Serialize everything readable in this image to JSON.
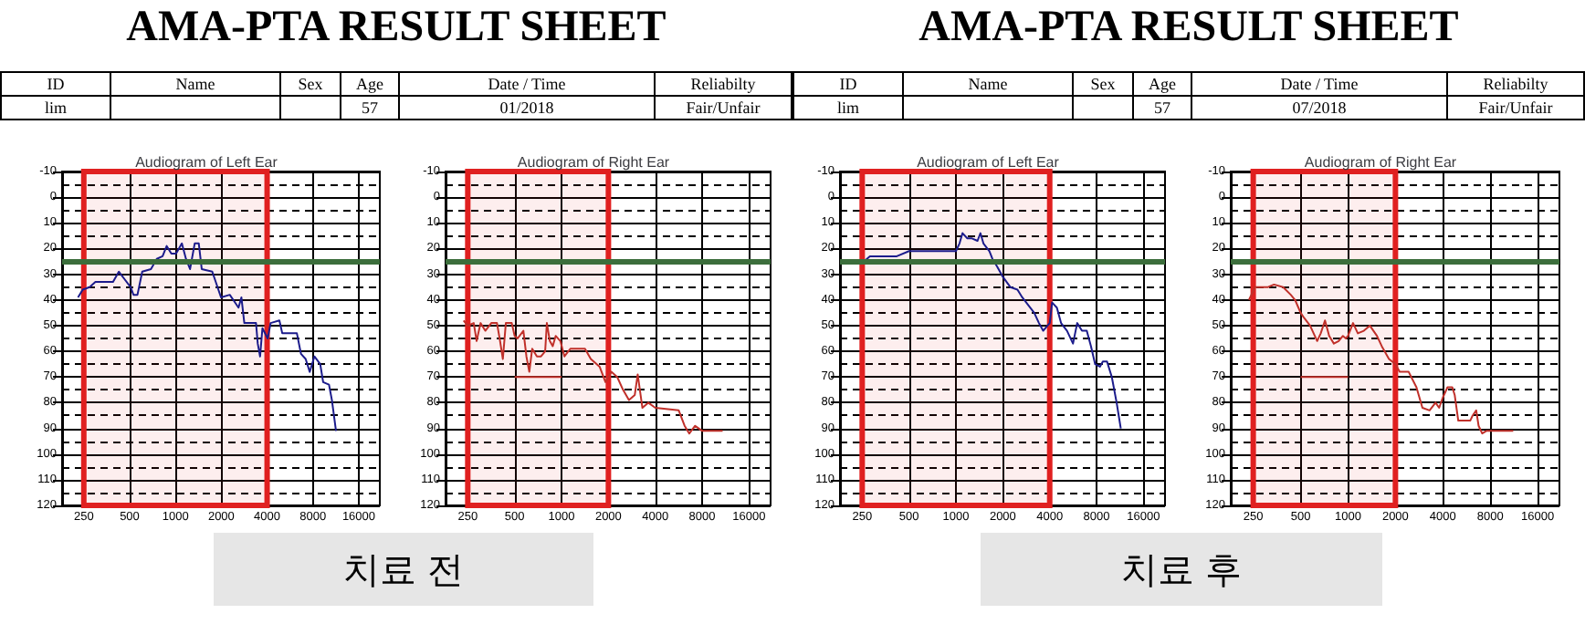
{
  "chart_data": [
    {
      "type": "other",
      "title": "AMA-PTA RESULT SHEET",
      "categories": [
        "ID",
        "Name",
        "Sex",
        "Age",
        "Date / Time",
        "Reliabilty"
      ],
      "cell_labels": [
        [
          "lim",
          null,
          null,
          "57",
          "01/2018",
          "Fair/Unfair"
        ]
      ]
    },
    {
      "type": "other",
      "title": "AMA-PTA RESULT SHEET",
      "categories": [
        "ID",
        "Name",
        "Sex",
        "Age",
        "Date / Time",
        "Reliabilty"
      ],
      "cell_labels": [
        [
          "lim",
          null,
          null,
          "57",
          "07/2018",
          "Fair/Unfair"
        ]
      ]
    },
    {
      "type": "line",
      "title": "Audiogram of Left Ear",
      "log": "x",
      "grid": true,
      "xlim": [
        180,
        22000
      ],
      "xticks": [
        250,
        500,
        1000,
        2000,
        4000,
        8000,
        16000
      ],
      "ylim": [
        120,
        -10
      ],
      "yticks": [
        -10,
        0,
        10,
        20,
        30,
        40,
        50,
        60,
        70,
        80,
        90,
        100,
        110,
        120
      ],
      "series": [
        {
          "color": "#1c1c8c",
          "x": [
            229,
            246,
            273,
            298,
            389,
            425,
            464,
            507,
            530,
            563,
            605,
            690,
            754,
            823,
            876,
            940,
            1009,
            1102,
            1172,
            1247,
            1338,
            1423,
            1488,
            1745,
            1992,
            2274,
            2595,
            2711,
            2834,
            3382,
            3472,
            3597,
            3727,
            4037,
            4217,
            4816,
            5032,
            6276,
            6676,
            7165,
            7622,
            8181,
            8933,
            9337,
            10200,
            10660,
            11340
          ],
          "values": [
            39,
            36,
            35,
            33,
            33,
            29,
            32,
            35,
            38,
            38,
            29,
            28,
            24,
            23,
            19,
            22,
            22,
            18,
            24,
            28,
            18,
            18,
            28,
            29,
            39,
            38,
            43,
            39,
            49,
            49,
            57,
            62,
            51,
            55,
            49,
            48,
            53,
            53,
            61,
            63,
            68,
            62,
            65,
            72,
            73,
            79,
            91
          ]
        }
      ],
      "ref_lines": [
        {
          "axis": "y",
          "value": 25,
          "color": "#3c6e3c"
        }
      ],
      "bands": [
        {
          "axis": "x",
          "from": 250,
          "to": 4000,
          "color": "#e02020"
        }
      ]
    },
    {
      "type": "line",
      "title": "Audiogram of Right Ear",
      "log": "x",
      "grid": true,
      "xlim": [
        180,
        22000
      ],
      "xticks": [
        250,
        500,
        1000,
        2000,
        4000,
        8000,
        16000
      ],
      "ylim": [
        120,
        -10
      ],
      "yticks": [
        -10,
        0,
        10,
        20,
        30,
        40,
        50,
        60,
        70,
        80,
        90,
        100,
        110,
        120
      ],
      "series": [
        {
          "color": "#c0302a",
          "x": [
            235,
            250,
            273,
            285,
            302,
            324,
            354,
            385,
            403,
            420,
            439,
            479,
            500,
            522,
            569,
            595,
            621,
            648,
            695,
            738,
            785,
            805,
            841,
            878,
            917,
            983,
            1044,
            1139,
            1414,
            1542,
            1756,
            1915,
            2089,
            2278,
            2484,
            2709,
            2954,
            3084,
            3306,
            3605,
            4000,
            5657,
            6169,
            6612,
            7211,
            8000,
            10830
          ],
          "values": [
            48,
            50,
            49,
            56,
            49,
            52,
            49,
            49,
            56,
            63,
            49,
            49,
            54,
            55,
            52,
            62,
            68,
            59,
            62,
            62,
            60,
            49,
            56,
            58,
            54,
            56,
            62,
            59,
            59,
            63,
            66,
            72,
            68,
            70,
            75,
            79,
            77,
            69,
            82,
            80,
            82,
            83,
            89,
            92,
            89,
            91,
            91
          ]
        },
        {
          "color": "#c0302a",
          "x": [
            500,
            1000
          ],
          "values": [
            70,
            70
          ]
        }
      ],
      "ref_lines": [
        {
          "axis": "y",
          "value": 25,
          "color": "#3c6e3c"
        }
      ],
      "bands": [
        {
          "axis": "x",
          "from": 250,
          "to": 2000,
          "color": "#e02020"
        }
      ]
    },
    {
      "type": "line",
      "title": "Audiogram of Left Ear",
      "log": "x",
      "grid": true,
      "xlim": [
        180,
        22000
      ],
      "xticks": [
        250,
        500,
        1000,
        2000,
        4000,
        8000,
        16000
      ],
      "ylim": [
        120,
        -10
      ],
      "yticks": [
        -10,
        0,
        10,
        20,
        30,
        40,
        50,
        60,
        70,
        80,
        90,
        100,
        110,
        120
      ],
      "series": [
        {
          "color": "#1c1c8c",
          "x": [
            241,
            257,
            280,
            350,
            417,
            500,
            594,
            774,
            1000,
            1054,
            1102,
            1183,
            1258,
            1375,
            1436,
            1501,
            1640,
            1714,
            1839,
            2000,
            2233,
            2483,
            2665,
            2910,
            3180,
            3412,
            3630,
            4000,
            4144,
            4447,
            4730,
            5166,
            5645,
            6006,
            6445,
            6917,
            7360,
            7830,
            8400,
            8778,
            9337,
            10020,
            10760,
            11440
          ],
          "values": [
            26,
            25,
            23,
            23,
            23,
            21,
            21,
            21,
            21,
            18,
            14,
            16,
            16,
            17,
            14,
            18,
            21,
            24,
            27,
            31,
            35,
            36,
            39,
            42,
            45,
            49,
            52,
            49,
            41,
            43,
            49,
            52,
            57,
            49,
            52,
            52,
            58,
            65,
            66,
            64,
            64,
            70,
            80,
            90
          ]
        }
      ],
      "ref_lines": [
        {
          "axis": "y",
          "value": 25,
          "color": "#3c6e3c"
        }
      ],
      "bands": [
        {
          "axis": "x",
          "from": 250,
          "to": 4000,
          "color": "#e02020"
        }
      ]
    },
    {
      "type": "line",
      "title": "Audiogram of Right Ear",
      "log": "x",
      "grid": true,
      "xlim": [
        180,
        22000
      ],
      "xticks": [
        250,
        500,
        1000,
        2000,
        4000,
        8000,
        16000
      ],
      "ylim": [
        120,
        -10
      ],
      "yticks": [
        -10,
        0,
        10,
        20,
        30,
        40,
        50,
        60,
        70,
        80,
        90,
        100,
        110,
        120
      ],
      "series": [
        {
          "color": "#c0302a",
          "x": [
            235,
            257,
            273,
            311,
            339,
            387,
            433,
            461,
            500,
            526,
            574,
            637,
            671,
            714,
            759,
            813,
            872,
            928,
            969,
            1000,
            1076,
            1154,
            1260,
            1375,
            1526,
            1637,
            1819,
            2000,
            2128,
            2427,
            2719,
            2967,
            3295,
            3595,
            3788,
            4000,
            4281,
            4592,
            4757,
            5012,
            5970,
            6184,
            6515,
            6748,
            7110,
            7556,
            8000,
            11200
          ],
          "values": [
            40,
            35,
            35,
            35,
            34,
            35,
            38,
            40,
            45,
            47,
            50,
            56,
            53,
            48,
            54,
            57,
            56,
            54,
            55,
            54,
            49,
            53,
            52,
            50,
            54,
            58,
            63,
            65,
            68,
            68,
            74,
            82,
            83,
            80,
            82,
            78,
            74,
            74,
            77,
            87,
            87,
            85,
            83,
            89,
            92,
            91,
            91,
            91
          ]
        },
        {
          "color": "#c0302a",
          "x": [
            500,
            1000
          ],
          "values": [
            70,
            70
          ]
        }
      ],
      "ref_lines": [
        {
          "axis": "y",
          "value": 25,
          "color": "#3c6e3c"
        }
      ],
      "bands": [
        {
          "axis": "x",
          "from": 250,
          "to": 2000,
          "color": "#e02020"
        }
      ]
    },
    {
      "type": "other",
      "annotations": [
        "치료 전"
      ]
    },
    {
      "type": "other",
      "annotations": [
        "치료 후"
      ]
    }
  ]
}
